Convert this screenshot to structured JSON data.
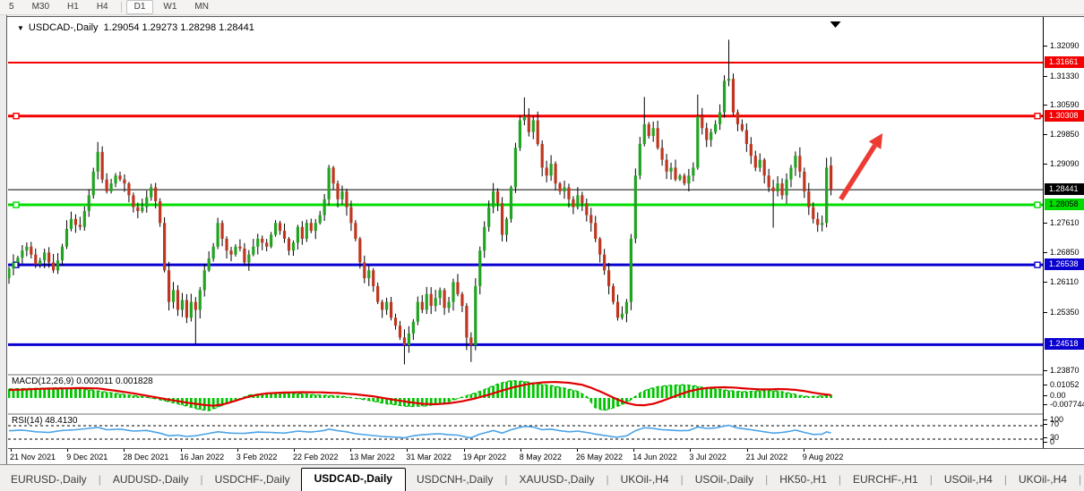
{
  "toolbar": {
    "timeframes": [
      "5",
      "M30",
      "H1",
      "H4",
      "D1",
      "W1",
      "MN"
    ],
    "active": "D1"
  },
  "chart": {
    "title_symbol": "USDCAD-,Daily",
    "title_ohlc": "1.29054 1.29273 1.28298 1.28441",
    "dropdown_glyph": "▼"
  },
  "chart_data": {
    "type": "candlestick",
    "symbol": "USDCAD",
    "timeframe": "Daily",
    "current_ohlc": {
      "open": 1.29054,
      "high": 1.29273,
      "low": 1.28298,
      "close": 1.28441
    },
    "colors": {
      "up_candle": "#22a322",
      "down_candle": "#bf3620",
      "wick": "#000000",
      "macd_hist": "#00c400",
      "macd_main_dashed": "#00bb00",
      "macd_signal": "#e00000",
      "rsi_line": "#4aa3e8",
      "arrow": "#ec3b33",
      "level_red": "#f40000",
      "level_green": "#00dc00",
      "level_blue": "#0a00d0",
      "bid_black": "#000000"
    },
    "y_axis": {
      "ticks": [
        "1.32090",
        "1.31330",
        "1.30590",
        "1.29850",
        "1.29090",
        "1.27610",
        "1.26850",
        "1.26110",
        "1.25350",
        "1.23870"
      ],
      "top_price": 1.3209,
      "bottom_price": 1.2387
    },
    "x_labels": [
      "21 Nov 2021",
      "9 Dec 2021",
      "28 Dec 2021",
      "16 Jan 2022",
      "3 Feb 2022",
      "22 Feb 2022",
      "13 Mar 2022",
      "31 Mar 2022",
      "19 Apr 2022",
      "8 May 2022",
      "26 May 2022",
      "14 Jun 2022",
      "3 Jul 2022",
      "21 Jul 2022",
      "9 Aug 2022"
    ],
    "levels": [
      {
        "label": "1.31661",
        "price": 1.31661,
        "color": "#f40000",
        "width": 2,
        "handles": false,
        "dark_text": false
      },
      {
        "label": "1.30308",
        "price": 1.30308,
        "color": "#f40000",
        "width": 3,
        "handles": true,
        "dark_text": false
      },
      {
        "label": "1.28058",
        "price": 1.28058,
        "color": "#00dc00",
        "width": 3,
        "handles": true,
        "dark_text": true
      },
      {
        "label": "1.26538",
        "price": 1.26538,
        "color": "#0a00d0",
        "width": 3,
        "handles": true,
        "dark_text": false
      },
      {
        "label": "1.24518",
        "price": 1.24518,
        "color": "#0a00d0",
        "width": 3,
        "handles": false,
        "dark_text": false
      }
    ],
    "bid_line": {
      "label": "1.28441",
      "price": 1.28441,
      "color": "#000000"
    },
    "candles": {
      "first_open": 1.262,
      "closes": [
        1.2645,
        1.266,
        1.2672,
        1.269,
        1.27,
        1.268,
        1.2655,
        1.2665,
        1.2685,
        1.266,
        1.264,
        1.2665,
        1.27,
        1.2745,
        1.277,
        1.2755,
        1.275,
        1.279,
        1.283,
        1.289,
        1.294,
        1.287,
        1.284,
        1.286,
        1.288,
        1.287,
        1.286,
        1.283,
        1.28,
        1.279,
        1.28,
        1.2825,
        1.285,
        1.2815,
        1.276,
        1.264,
        1.256,
        1.259,
        1.254,
        1.2565,
        1.252,
        1.256,
        1.254,
        1.259,
        1.264,
        1.267,
        1.27,
        1.276,
        1.272,
        1.269,
        1.268,
        1.27,
        1.2695,
        1.266,
        1.268,
        1.27,
        1.272,
        1.271,
        1.27,
        1.273,
        1.276,
        1.274,
        1.272,
        1.269,
        1.271,
        1.275,
        1.272,
        1.276,
        1.274,
        1.276,
        1.278,
        1.282,
        1.29,
        1.286,
        1.282,
        1.284,
        1.28,
        1.276,
        1.272,
        1.266,
        1.262,
        1.264,
        1.26,
        1.256,
        1.254,
        1.256,
        1.252,
        1.25,
        1.247,
        1.245,
        1.248,
        1.251,
        1.256,
        1.254,
        1.258,
        1.255,
        1.257,
        1.259,
        1.2545,
        1.256,
        1.261,
        1.258,
        1.255,
        1.247,
        1.245,
        1.26,
        1.269,
        1.275,
        1.28,
        1.284,
        1.281,
        1.273,
        1.277,
        1.285,
        1.295,
        1.302,
        1.303,
        1.299,
        1.302,
        1.296,
        1.29,
        1.288,
        1.291,
        1.286,
        1.284,
        1.285,
        1.282,
        1.28,
        1.283,
        1.281,
        1.278,
        1.276,
        1.272,
        1.268,
        1.264,
        1.26,
        1.256,
        1.252,
        1.253,
        1.256,
        1.272,
        1.288,
        1.296,
        1.301,
        1.298,
        1.3,
        1.295,
        1.292,
        1.289,
        1.29,
        1.287,
        1.288,
        1.286,
        1.288,
        1.29,
        1.303,
        1.3,
        1.297,
        1.299,
        1.301,
        1.304,
        1.312,
        1.3125,
        1.304,
        1.301,
        1.2995,
        1.296,
        1.293,
        1.29,
        1.292,
        1.288,
        1.285,
        1.284,
        1.286,
        1.283,
        1.287,
        1.29,
        1.293,
        1.289,
        1.284,
        1.28,
        1.277,
        1.2755,
        1.276,
        1.29,
        1.28441
      ],
      "wick_overrides": {
        "20": {
          "high": 1.2965
        },
        "42": {
          "low": 1.2452
        },
        "89": {
          "low": 1.2402
        },
        "103": {
          "low": 1.2438
        },
        "104": {
          "low": 1.2408
        },
        "116": {
          "high": 1.3078
        },
        "143": {
          "high": 1.3079
        },
        "155": {
          "high": 1.3085
        },
        "162": {
          "high": 1.3224
        },
        "172": {
          "low": 1.2748
        },
        "184": {
          "high": 1.2925
        }
      },
      "last_candle_open": 1.29054
    },
    "macd": {
      "label": "MACD(12,26,9) 0.002011 0.001828",
      "current_main": 0.002011,
      "current_signal": 0.001828,
      "ticks": [
        "0.01052",
        "0.00",
        "-0.007744"
      ],
      "main": [
        [
          0,
          0.0055
        ],
        [
          12,
          0.0062
        ],
        [
          18,
          0.005
        ],
        [
          24,
          0.0028
        ],
        [
          30,
          0.0008
        ],
        [
          33,
          -0.0005
        ],
        [
          38,
          -0.0035
        ],
        [
          43,
          -0.007
        ],
        [
          45,
          -0.0077
        ],
        [
          48,
          -0.0045
        ],
        [
          51,
          -0.0015
        ],
        [
          54,
          0.0018
        ],
        [
          58,
          0.0028
        ],
        [
          64,
          0.0028
        ],
        [
          70,
          0.0018
        ],
        [
          75,
          0.001
        ],
        [
          80,
          -0.001
        ],
        [
          85,
          -0.0035
        ],
        [
          90,
          -0.0052
        ],
        [
          94,
          -0.0048
        ],
        [
          98,
          -0.003
        ],
        [
          102,
          0.0005
        ],
        [
          106,
          0.004
        ],
        [
          110,
          0.0085
        ],
        [
          113,
          0.0105
        ],
        [
          116,
          0.01
        ],
        [
          119,
          0.0085
        ],
        [
          122,
          0.0075
        ],
        [
          125,
          0.006
        ],
        [
          128,
          0.004
        ],
        [
          130,
          0.001
        ],
        [
          132,
          -0.006
        ],
        [
          134,
          -0.0075
        ],
        [
          136,
          -0.006
        ],
        [
          138,
          -0.004
        ],
        [
          140,
          -0.001
        ],
        [
          142,
          0.003
        ],
        [
          144,
          0.0055
        ],
        [
          146,
          0.0068
        ],
        [
          148,
          0.0075
        ],
        [
          150,
          0.0078
        ],
        [
          152,
          0.008
        ],
        [
          154,
          0.0075
        ],
        [
          156,
          0.0065
        ],
        [
          158,
          0.0058
        ],
        [
          160,
          0.0052
        ],
        [
          162,
          0.0045
        ],
        [
          164,
          0.004
        ],
        [
          166,
          0.0038
        ],
        [
          168,
          0.0042
        ],
        [
          170,
          0.0046
        ],
        [
          172,
          0.0044
        ],
        [
          174,
          0.0038
        ],
        [
          176,
          0.0028
        ],
        [
          178,
          0.0015
        ],
        [
          180,
          0.0008
        ],
        [
          182,
          0.001
        ],
        [
          184,
          0.0016
        ],
        [
          185,
          0.002
        ]
      ],
      "signal": [
        [
          0,
          0.0048
        ],
        [
          4,
          0.0052
        ],
        [
          8,
          0.0056
        ],
        [
          12,
          0.0058
        ],
        [
          16,
          0.006
        ],
        [
          20,
          0.0058
        ],
        [
          24,
          0.0044
        ],
        [
          28,
          0.0028
        ],
        [
          32,
          0.0009
        ],
        [
          36,
          -0.001
        ],
        [
          40,
          -0.0028
        ],
        [
          44,
          -0.0042
        ],
        [
          46,
          -0.0047
        ],
        [
          48,
          -0.004
        ],
        [
          50,
          -0.0025
        ],
        [
          52,
          -0.0008
        ],
        [
          54,
          0.0008
        ],
        [
          56,
          0.002
        ],
        [
          58,
          0.0028
        ],
        [
          62,
          0.0033
        ],
        [
          66,
          0.0035
        ],
        [
          70,
          0.0034
        ],
        [
          74,
          0.003
        ],
        [
          78,
          0.0022
        ],
        [
          82,
          0.001
        ],
        [
          86,
          -0.0008
        ],
        [
          90,
          -0.0025
        ],
        [
          93,
          -0.0035
        ],
        [
          96,
          -0.0038
        ],
        [
          99,
          -0.0032
        ],
        [
          102,
          -0.002
        ],
        [
          105,
          -0.0002
        ],
        [
          108,
          0.002
        ],
        [
          111,
          0.0045
        ],
        [
          114,
          0.0068
        ],
        [
          117,
          0.0085
        ],
        [
          120,
          0.0094
        ],
        [
          123,
          0.0097
        ],
        [
          126,
          0.0092
        ],
        [
          129,
          0.008
        ],
        [
          131,
          0.0062
        ],
        [
          133,
          0.004
        ],
        [
          135,
          0.0015
        ],
        [
          137,
          -0.001
        ],
        [
          139,
          -0.003
        ],
        [
          141,
          -0.0042
        ],
        [
          143,
          -0.0044
        ],
        [
          145,
          -0.0035
        ],
        [
          147,
          -0.0018
        ],
        [
          149,
          0.0002
        ],
        [
          151,
          0.0022
        ],
        [
          153,
          0.004
        ],
        [
          155,
          0.0052
        ],
        [
          157,
          0.006
        ],
        [
          159,
          0.0064
        ],
        [
          161,
          0.0065
        ],
        [
          163,
          0.0063
        ],
        [
          165,
          0.0059
        ],
        [
          167,
          0.0055
        ],
        [
          169,
          0.0052
        ],
        [
          171,
          0.0052
        ],
        [
          173,
          0.0054
        ],
        [
          175,
          0.0053
        ],
        [
          177,
          0.0049
        ],
        [
          179,
          0.0042
        ],
        [
          181,
          0.0032
        ],
        [
          183,
          0.0024
        ],
        [
          185,
          0.0018
        ]
      ]
    },
    "rsi": {
      "label": "RSI(14) 48.4130",
      "current": 48.413,
      "ticks": [
        "100",
        "70",
        "30",
        "0"
      ],
      "levels": [
        70,
        30
      ],
      "values": [
        [
          0,
          55
        ],
        [
          3,
          57
        ],
        [
          6,
          52
        ],
        [
          9,
          50
        ],
        [
          12,
          56
        ],
        [
          15,
          58
        ],
        [
          18,
          62
        ],
        [
          20,
          65
        ],
        [
          22,
          58
        ],
        [
          25,
          60
        ],
        [
          28,
          54
        ],
        [
          31,
          56
        ],
        [
          34,
          48
        ],
        [
          36,
          40
        ],
        [
          38,
          42
        ],
        [
          40,
          38
        ],
        [
          42,
          40
        ],
        [
          45,
          47
        ],
        [
          47,
          52
        ],
        [
          50,
          48
        ],
        [
          53,
          47
        ],
        [
          56,
          51
        ],
        [
          59,
          50
        ],
        [
          62,
          48
        ],
        [
          65,
          54
        ],
        [
          68,
          51
        ],
        [
          71,
          56
        ],
        [
          72,
          60
        ],
        [
          74,
          55
        ],
        [
          76,
          52
        ],
        [
          78,
          46
        ],
        [
          81,
          42
        ],
        [
          84,
          38
        ],
        [
          87,
          36
        ],
        [
          89,
          34
        ],
        [
          91,
          40
        ],
        [
          93,
          43
        ],
        [
          95,
          45
        ],
        [
          97,
          46
        ],
        [
          99,
          43
        ],
        [
          101,
          42
        ],
        [
          103,
          36
        ],
        [
          104,
          34
        ],
        [
          106,
          45
        ],
        [
          108,
          52
        ],
        [
          109,
          56
        ],
        [
          111,
          48
        ],
        [
          113,
          58
        ],
        [
          115,
          65
        ],
        [
          116,
          68
        ],
        [
          118,
          66
        ],
        [
          120,
          58
        ],
        [
          122,
          60
        ],
        [
          124,
          55
        ],
        [
          126,
          52
        ],
        [
          128,
          54
        ],
        [
          130,
          50
        ],
        [
          132,
          45
        ],
        [
          134,
          41
        ],
        [
          136,
          37
        ],
        [
          137,
          36
        ],
        [
          139,
          40
        ],
        [
          141,
          55
        ],
        [
          143,
          64
        ],
        [
          145,
          62
        ],
        [
          147,
          58
        ],
        [
          149,
          57
        ],
        [
          151,
          55
        ],
        [
          153,
          56
        ],
        [
          155,
          66
        ],
        [
          157,
          62
        ],
        [
          159,
          63
        ],
        [
          161,
          69
        ],
        [
          162,
          71
        ],
        [
          164,
          63
        ],
        [
          166,
          60
        ],
        [
          168,
          56
        ],
        [
          170,
          52
        ],
        [
          172,
          48
        ],
        [
          174,
          50
        ],
        [
          176,
          54
        ],
        [
          177,
          57
        ],
        [
          179,
          50
        ],
        [
          181,
          44
        ],
        [
          183,
          45
        ],
        [
          184,
          52
        ],
        [
          185,
          48.4
        ]
      ]
    },
    "arrow_annotation": {
      "from": {
        "index": 187.2,
        "price": 1.282
      },
      "to": {
        "index": 196.6,
        "price": 1.2987
      }
    },
    "top_marker": {
      "index": 186,
      "glyph": "▼"
    }
  },
  "tabs": {
    "items": [
      "EURUSD-,Daily",
      "AUDUSD-,Daily",
      "USDCHF-,Daily",
      "USDCAD-,Daily",
      "USDCNH-,Daily",
      "XAUUSD-,Daily",
      "UKOil-,H4",
      "USOil-,Daily",
      "HK50-,H1",
      "EURCHF-,H1",
      "USOil-,H4",
      "UKOil-,H4"
    ],
    "active": "USDCAD-,Daily",
    "scroll_left_glyph": "◄",
    "scroll_right_glyph": "►"
  }
}
